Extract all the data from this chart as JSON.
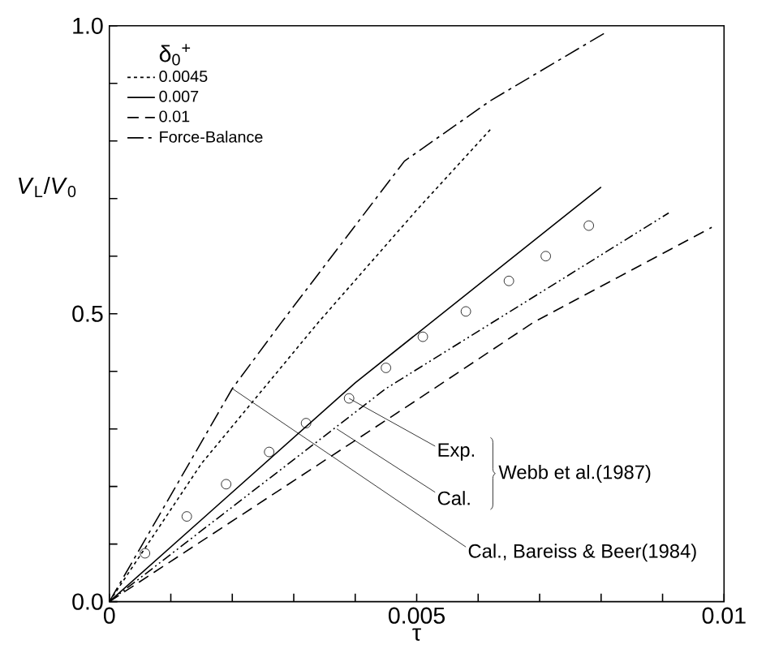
{
  "chart_data": {
    "type": "line",
    "xlabel": "τ",
    "ylabel": "*V*$_{L}$/*V*$_{0}$",
    "legend_title": "δ$_{0}$$^{+}$",
    "legend": "top left",
    "xlim": [
      0,
      0.01
    ],
    "ylim": [
      0,
      1.0
    ],
    "xticks": [
      0,
      {
        "value": 0.001,
        "label": null
      },
      {
        "value": 0.002,
        "label": null
      },
      {
        "value": 0.003,
        "label": null
      },
      {
        "value": 0.004,
        "label": null
      },
      0.005,
      {
        "value": 0.006,
        "label": null
      },
      {
        "value": 0.007,
        "label": null
      },
      {
        "value": 0.008,
        "label": null
      },
      {
        "value": 0.009,
        "label": null
      },
      0.01
    ],
    "yticks": [
      {
        "value": 0,
        "label": "0.0"
      },
      {
        "value": 0.1,
        "label": null
      },
      {
        "value": 0.2,
        "label": null
      },
      {
        "value": 0.3,
        "label": null
      },
      {
        "value": 0.4,
        "label": null
      },
      {
        "value": 0.5,
        "label": "0.5"
      },
      {
        "value": 0.6,
        "label": null
      },
      {
        "value": 0.7,
        "label": null
      },
      {
        "value": 0.8,
        "label": null
      },
      {
        "value": 0.9,
        "label": null
      },
      {
        "value": 1.0,
        "label": "1.0"
      }
    ],
    "series": [
      {
        "name": "0.0045",
        "color": "#000000",
        "line_style": "dotted",
        "x": [
          0,
          0.0015,
          0.0034,
          0.005,
          0.0062
        ],
        "values": [
          0,
          0.24,
          0.485,
          0.68,
          0.82
        ]
      },
      {
        "name": "0.007",
        "color": "#000000",
        "line_style": "solid",
        "x": [
          0,
          0.004,
          0.008
        ],
        "values": [
          0,
          0.38,
          0.72
        ]
      },
      {
        "name": "0.01",
        "color": "#000000",
        "line_style": "dashed",
        "x": [
          0,
          0.005,
          0.0069,
          0.0098
        ],
        "values": [
          0,
          0.35,
          0.485,
          0.65
        ]
      },
      {
        "name": "Force-Balance",
        "color": "#000000",
        "line_style": "dashed",
        "x": [
          0,
          0.002,
          0.0028,
          0.0048,
          0.0062,
          0.0081
        ],
        "values": [
          0,
          0.37,
          0.485,
          0.765,
          0.87,
          0.99
        ]
      },
      {
        "color": "#000000",
        "line_style": "dotted",
        "x": [
          0,
          0.0045,
          0.0091
        ],
        "values": [
          0,
          0.37,
          0.675
        ]
      },
      {
        "type": "scatter",
        "marker": "circle",
        "color": "#000000",
        "x": [
          0.00058,
          0.00126,
          0.0019,
          0.0026,
          0.0032,
          0.0039,
          0.0045,
          0.0051,
          0.0058,
          0.0065,
          0.0071,
          0.0078
        ],
        "values": [
          0.084,
          0.148,
          0.204,
          0.26,
          0.31,
          0.353,
          0.406,
          0.46,
          0.504,
          0.557,
          0.6,
          0.653
        ]
      }
    ],
    "annotations": [
      {
        "text": "Exp.",
        "x": 0.0039,
        "y": 0.353
      },
      {
        "text": "Cal.",
        "x": 0.0037,
        "y": 0.3
      },
      {
        "text": "Cal., Bareiss & Beer(1984)",
        "x": 0.002,
        "y": 0.37
      },
      "Webb et al.(1987)"
    ]
  }
}
